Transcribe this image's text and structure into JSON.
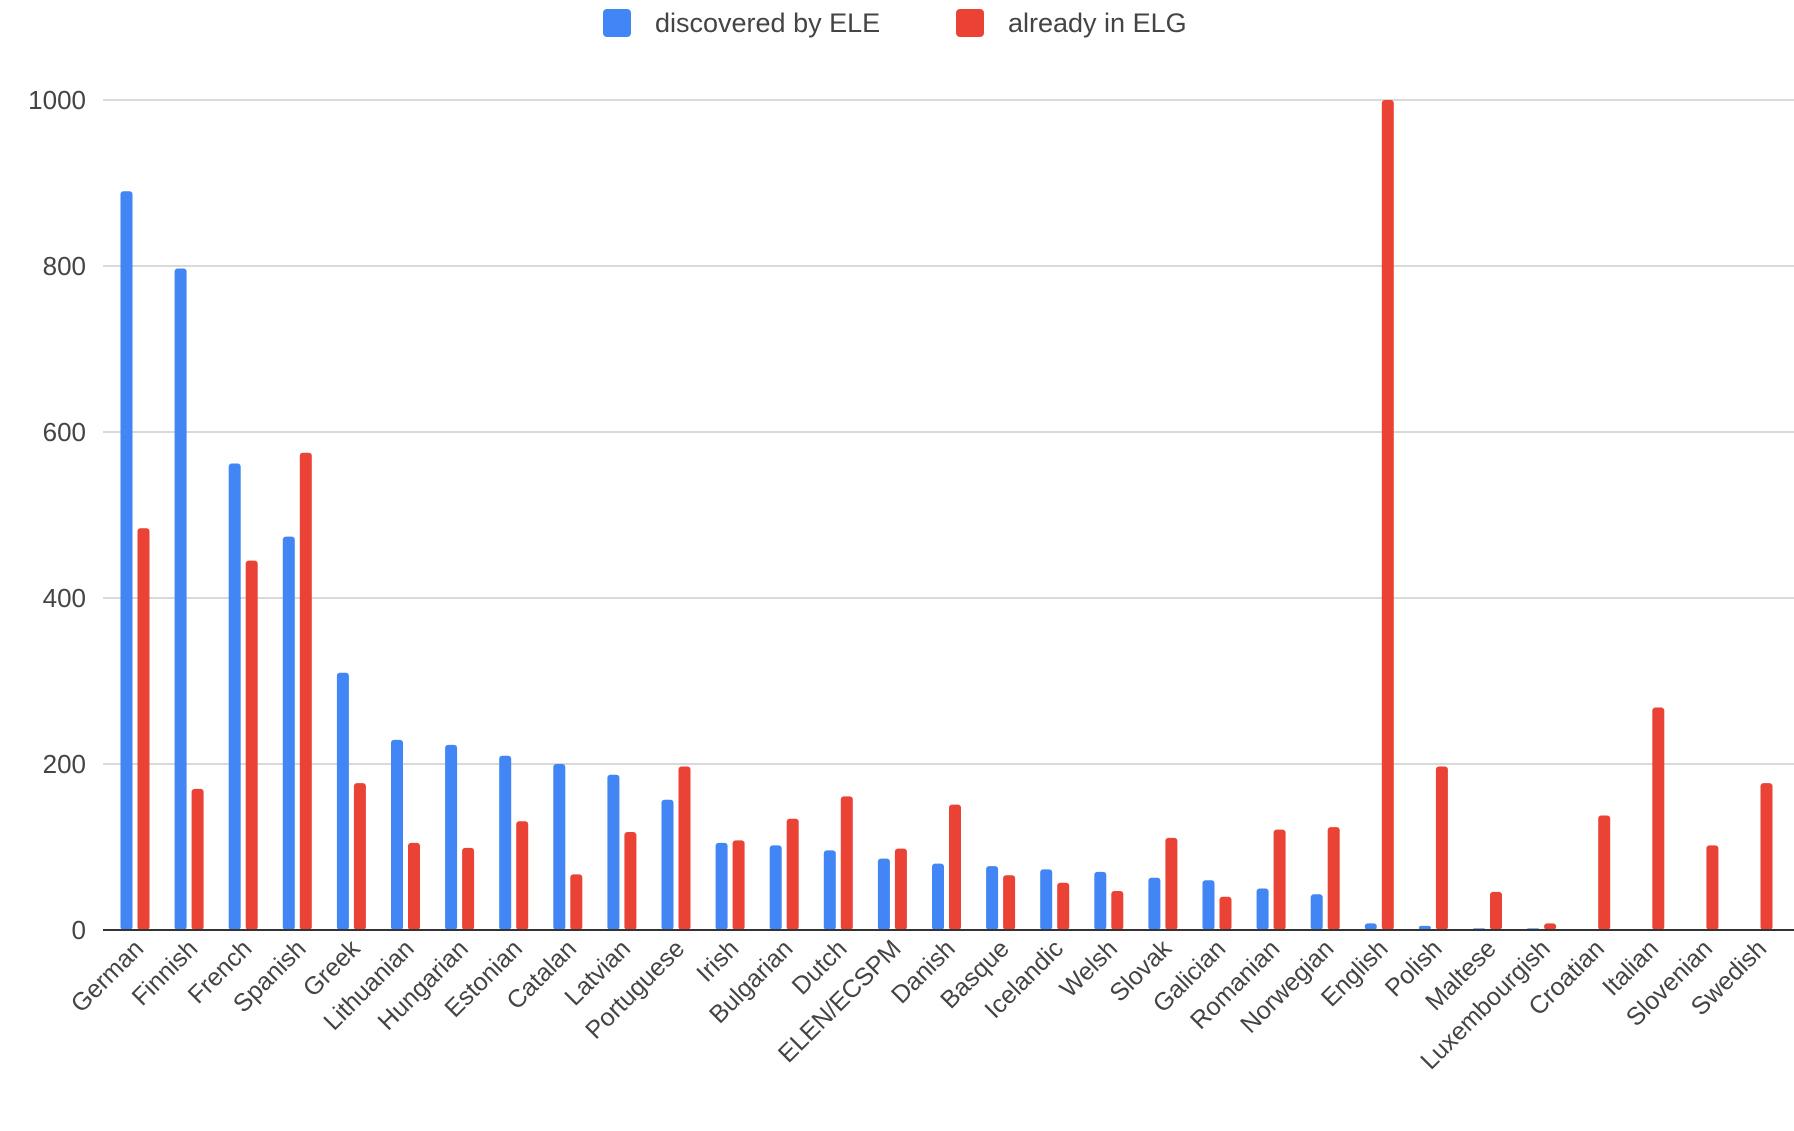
{
  "legend": {
    "ele_label": "discovered by ELE",
    "elg_label": "already in ELG"
  },
  "colors": {
    "ele": "#4285F4",
    "elg": "#EA4335",
    "grid": "#d9d9d9",
    "axis": "#333333",
    "text": "#444444"
  },
  "chart_data": {
    "type": "bar",
    "title": "",
    "xlabel": "",
    "ylabel": "",
    "ylim": [
      0,
      1000
    ],
    "yticks": [
      "0",
      "200",
      "400",
      "600",
      "800",
      "1000"
    ],
    "grid": true,
    "legend_position": "top",
    "categories": [
      "German",
      "Finnish",
      "French",
      "Spanish",
      "Greek",
      "Lithuanian",
      "Hungarian",
      "Estonian",
      "Catalan",
      "Latvian",
      "Portuguese",
      "Irish",
      "Bulgarian",
      "Dutch",
      "ELEN/ECSPM",
      "Danish",
      "Basque",
      "Icelandic",
      "Welsh",
      "Slovak",
      "Galician",
      "Romanian",
      "Norwegian",
      "English",
      "Polish",
      "Maltese",
      "Luxembourgish",
      "Croatian",
      "Italian",
      "Slovenian",
      "Swedish"
    ],
    "series": [
      {
        "name": "discovered by ELE",
        "color": "#4285F4",
        "values": [
          890,
          797,
          562,
          474,
          310,
          229,
          223,
          210,
          200,
          187,
          157,
          105,
          102,
          96,
          86,
          80,
          77,
          73,
          70,
          63,
          60,
          50,
          43,
          8,
          5,
          2,
          2,
          0,
          0,
          0,
          0
        ]
      },
      {
        "name": "already in ELG",
        "color": "#EA4335",
        "values": [
          484,
          170,
          445,
          575,
          177,
          105,
          99,
          131,
          67,
          118,
          197,
          108,
          134,
          161,
          98,
          151,
          66,
          57,
          47,
          111,
          40,
          121,
          124,
          1000,
          197,
          46,
          8,
          138,
          268,
          102,
          177
        ]
      }
    ]
  }
}
